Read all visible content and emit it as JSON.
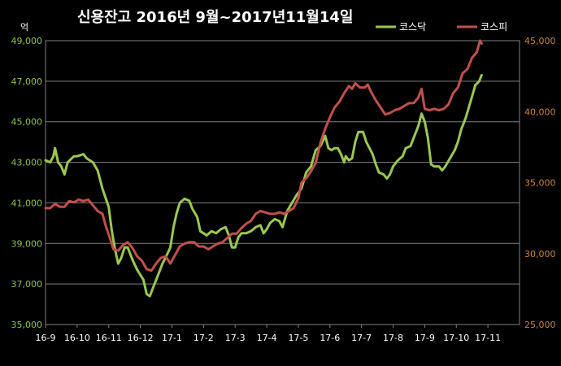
{
  "chart_data": {
    "type": "line",
    "title": "신용잔고 2016년 9월~2017년11월14일",
    "unit_label": "억",
    "x_categories": [
      "16-9",
      "16-10",
      "16-11",
      "16-12",
      "17-1",
      "17-2",
      "17-3",
      "17-4",
      "17-5",
      "17-6",
      "17-7",
      "17-8",
      "17-9",
      "17-10",
      "17-11"
    ],
    "y_left": {
      "min": 35000,
      "max": 49000,
      "ticks": [
        "35,000",
        "37,000",
        "39,000",
        "41,000",
        "43,000",
        "45,000",
        "47,000",
        "49,000"
      ],
      "color": "#8fc24a"
    },
    "y_right": {
      "min": 25000,
      "max": 45000,
      "ticks": [
        "25,000",
        "30,000",
        "35,000",
        "40,000",
        "45,000"
      ],
      "color": "#c9853a"
    },
    "grid": true,
    "legend_position": "top-right",
    "series": [
      {
        "name": "코스닥",
        "axis": "left",
        "color": "#9bc653",
        "points": [
          [
            0,
            43100
          ],
          [
            0.15,
            43000
          ],
          [
            0.25,
            43300
          ],
          [
            0.3,
            43700
          ],
          [
            0.4,
            43000
          ],
          [
            0.5,
            42800
          ],
          [
            0.6,
            42400
          ],
          [
            0.7,
            43000
          ],
          [
            0.9,
            43300
          ],
          [
            1.0,
            43300
          ],
          [
            1.2,
            43400
          ],
          [
            1.3,
            43200
          ],
          [
            1.5,
            43000
          ],
          [
            1.65,
            42600
          ],
          [
            1.8,
            41700
          ],
          [
            2.0,
            40800
          ],
          [
            2.1,
            39600
          ],
          [
            2.2,
            38700
          ],
          [
            2.3,
            38000
          ],
          [
            2.4,
            38300
          ],
          [
            2.5,
            38800
          ],
          [
            2.6,
            38800
          ],
          [
            2.75,
            38200
          ],
          [
            2.9,
            37700
          ],
          [
            3.1,
            37200
          ],
          [
            3.2,
            36500
          ],
          [
            3.3,
            36400
          ],
          [
            3.4,
            36800
          ],
          [
            3.55,
            37400
          ],
          [
            3.7,
            38000
          ],
          [
            3.8,
            38300
          ],
          [
            3.95,
            38800
          ],
          [
            4.05,
            39800
          ],
          [
            4.15,
            40500
          ],
          [
            4.25,
            41000
          ],
          [
            4.4,
            41200
          ],
          [
            4.55,
            41100
          ],
          [
            4.65,
            40700
          ],
          [
            4.8,
            40300
          ],
          [
            4.9,
            39600
          ],
          [
            5.1,
            39400
          ],
          [
            5.25,
            39600
          ],
          [
            5.4,
            39500
          ],
          [
            5.55,
            39700
          ],
          [
            5.7,
            39800
          ],
          [
            5.8,
            39400
          ],
          [
            5.9,
            38800
          ],
          [
            6.0,
            38800
          ],
          [
            6.1,
            39300
          ],
          [
            6.2,
            39500
          ],
          [
            6.35,
            39500
          ],
          [
            6.5,
            39600
          ],
          [
            6.65,
            39800
          ],
          [
            6.8,
            39900
          ],
          [
            6.9,
            39500
          ],
          [
            7.0,
            39700
          ],
          [
            7.1,
            40000
          ],
          [
            7.25,
            40200
          ],
          [
            7.4,
            40100
          ],
          [
            7.5,
            39800
          ],
          [
            7.65,
            40600
          ],
          [
            7.8,
            41000
          ],
          [
            7.95,
            41400
          ],
          [
            8.1,
            41700
          ],
          [
            8.25,
            42500
          ],
          [
            8.4,
            42800
          ],
          [
            8.55,
            43600
          ],
          [
            8.7,
            43800
          ],
          [
            8.85,
            44300
          ],
          [
            8.95,
            43700
          ],
          [
            9.05,
            43600
          ],
          [
            9.15,
            43700
          ],
          [
            9.25,
            43700
          ],
          [
            9.35,
            43400
          ],
          [
            9.45,
            43000
          ],
          [
            9.5,
            43300
          ],
          [
            9.6,
            43100
          ],
          [
            9.7,
            43200
          ],
          [
            9.8,
            44000
          ],
          [
            9.9,
            44500
          ],
          [
            10.05,
            44500
          ],
          [
            10.15,
            44000
          ],
          [
            10.25,
            43700
          ],
          [
            10.35,
            43400
          ],
          [
            10.45,
            42900
          ],
          [
            10.55,
            42500
          ],
          [
            10.7,
            42400
          ],
          [
            10.8,
            42200
          ],
          [
            10.9,
            42400
          ],
          [
            11.0,
            42800
          ],
          [
            11.15,
            43100
          ],
          [
            11.3,
            43300
          ],
          [
            11.4,
            43700
          ],
          [
            11.55,
            43800
          ],
          [
            11.7,
            44400
          ],
          [
            11.8,
            44800
          ],
          [
            11.9,
            45400
          ],
          [
            12.0,
            45000
          ],
          [
            12.1,
            44200
          ],
          [
            12.2,
            42900
          ],
          [
            12.3,
            42800
          ],
          [
            12.45,
            42800
          ],
          [
            12.55,
            42600
          ],
          [
            12.65,
            42800
          ],
          [
            12.8,
            43200
          ],
          [
            12.95,
            43600
          ],
          [
            13.05,
            44000
          ],
          [
            13.15,
            44600
          ],
          [
            13.3,
            45200
          ],
          [
            13.45,
            46000
          ],
          [
            13.6,
            46800
          ],
          [
            13.72,
            47000
          ],
          [
            13.8,
            47300
          ]
        ]
      },
      {
        "name": "코스피",
        "axis": "right",
        "color": "#c0504d",
        "points": [
          [
            0,
            33200
          ],
          [
            0.15,
            33200
          ],
          [
            0.3,
            33500
          ],
          [
            0.45,
            33300
          ],
          [
            0.6,
            33300
          ],
          [
            0.75,
            33700
          ],
          [
            0.9,
            33600
          ],
          [
            1.05,
            33800
          ],
          [
            1.2,
            33700
          ],
          [
            1.35,
            33800
          ],
          [
            1.5,
            33400
          ],
          [
            1.65,
            33000
          ],
          [
            1.8,
            32800
          ],
          [
            1.9,
            32000
          ],
          [
            2.05,
            31000
          ],
          [
            2.15,
            30300
          ],
          [
            2.3,
            30200
          ],
          [
            2.45,
            30600
          ],
          [
            2.6,
            30800
          ],
          [
            2.75,
            30400
          ],
          [
            2.9,
            29800
          ],
          [
            3.05,
            29500
          ],
          [
            3.2,
            28900
          ],
          [
            3.35,
            28800
          ],
          [
            3.5,
            29300
          ],
          [
            3.65,
            29700
          ],
          [
            3.8,
            29800
          ],
          [
            3.95,
            29300
          ],
          [
            4.1,
            29900
          ],
          [
            4.25,
            30500
          ],
          [
            4.4,
            30700
          ],
          [
            4.55,
            30800
          ],
          [
            4.7,
            30800
          ],
          [
            4.85,
            30500
          ],
          [
            5.0,
            30500
          ],
          [
            5.15,
            30300
          ],
          [
            5.3,
            30500
          ],
          [
            5.45,
            30700
          ],
          [
            5.6,
            30800
          ],
          [
            5.75,
            31100
          ],
          [
            5.9,
            31400
          ],
          [
            6.05,
            31400
          ],
          [
            6.2,
            31800
          ],
          [
            6.35,
            32100
          ],
          [
            6.5,
            32300
          ],
          [
            6.65,
            32800
          ],
          [
            6.8,
            33000
          ],
          [
            6.95,
            32900
          ],
          [
            7.1,
            32800
          ],
          [
            7.25,
            32800
          ],
          [
            7.4,
            32900
          ],
          [
            7.55,
            32800
          ],
          [
            7.7,
            33000
          ],
          [
            7.85,
            33200
          ],
          [
            8.0,
            33900
          ],
          [
            8.1,
            35000
          ],
          [
            8.25,
            35300
          ],
          [
            8.4,
            35800
          ],
          [
            8.55,
            36400
          ],
          [
            8.7,
            37800
          ],
          [
            8.85,
            38800
          ],
          [
            9.0,
            39600
          ],
          [
            9.15,
            40300
          ],
          [
            9.3,
            40700
          ],
          [
            9.45,
            41300
          ],
          [
            9.6,
            41800
          ],
          [
            9.7,
            41600
          ],
          [
            9.8,
            42000
          ],
          [
            9.95,
            41700
          ],
          [
            10.1,
            41700
          ],
          [
            10.2,
            41900
          ],
          [
            10.3,
            41400
          ],
          [
            10.45,
            40800
          ],
          [
            10.6,
            40300
          ],
          [
            10.75,
            39800
          ],
          [
            10.9,
            39900
          ],
          [
            11.05,
            40100
          ],
          [
            11.2,
            40200
          ],
          [
            11.35,
            40400
          ],
          [
            11.5,
            40600
          ],
          [
            11.65,
            40600
          ],
          [
            11.8,
            41000
          ],
          [
            11.9,
            41600
          ],
          [
            12.0,
            40200
          ],
          [
            12.15,
            40100
          ],
          [
            12.3,
            40200
          ],
          [
            12.45,
            40100
          ],
          [
            12.6,
            40200
          ],
          [
            12.75,
            40500
          ],
          [
            12.9,
            41300
          ],
          [
            13.05,
            41700
          ],
          [
            13.2,
            42700
          ],
          [
            13.35,
            43000
          ],
          [
            13.5,
            43800
          ],
          [
            13.65,
            44200
          ],
          [
            13.75,
            45000
          ],
          [
            13.8,
            44800
          ]
        ]
      }
    ]
  }
}
